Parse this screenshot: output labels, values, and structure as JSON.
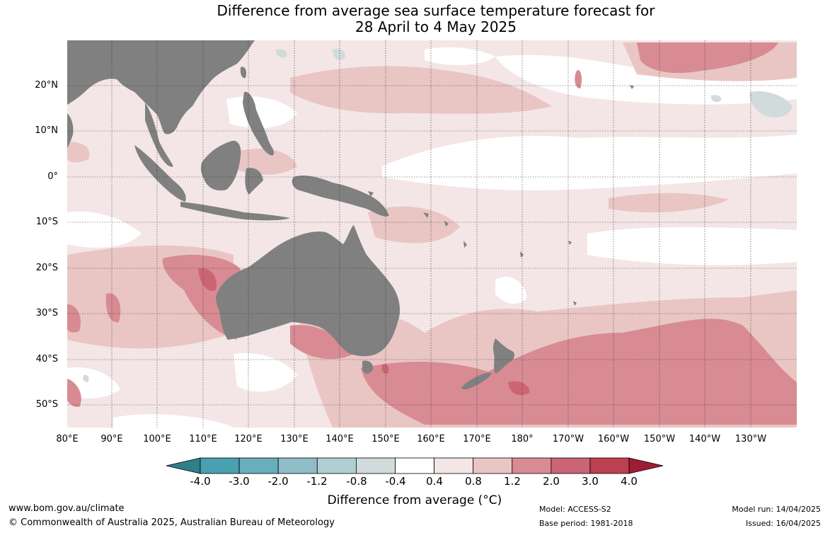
{
  "title_line1": "Difference from average sea surface temperature forecast for",
  "title_line2": "28 April to 4 May 2025",
  "lat_labels": [
    "20°N",
    "10°N",
    "0°",
    "10°S",
    "20°S",
    "30°S",
    "40°S",
    "50°S"
  ],
  "lon_labels": [
    "80°E",
    "90°E",
    "100°E",
    "110°E",
    "120°E",
    "130°E",
    "140°E",
    "150°E",
    "160°E",
    "170°E",
    "180°",
    "170°W",
    "160°W",
    "150°W",
    "140°W",
    "130°W"
  ],
  "colorbar": {
    "ticks": [
      "-4.0",
      "-3.0",
      "-2.0",
      "-1.2",
      "-0.8",
      "-0.4",
      "0.4",
      "0.8",
      "1.2",
      "2.0",
      "3.0",
      "4.0"
    ],
    "colors": [
      "#2f7f8a",
      "#48a0b1",
      "#68aebc",
      "#8fbcc6",
      "#b1cfd2",
      "#d2dbdb",
      "#ffffff",
      "#f4e6e6",
      "#e9c6c4",
      "#d88b93",
      "#cc6573",
      "#bc404f",
      "#9f1c35"
    ],
    "label": "Difference from average (°C)"
  },
  "land_color": "#808080",
  "footer": {
    "website": "www.bom.gov.au/climate",
    "copyright": "© Commonwealth of Australia 2025, Australian Bureau of Meteorology",
    "model": "Model: ACCESS-S2",
    "base_period": "Base period: 1981-2018",
    "model_run": "Model run: 14/04/2025",
    "issued": "Issued: 16/04/2025"
  }
}
